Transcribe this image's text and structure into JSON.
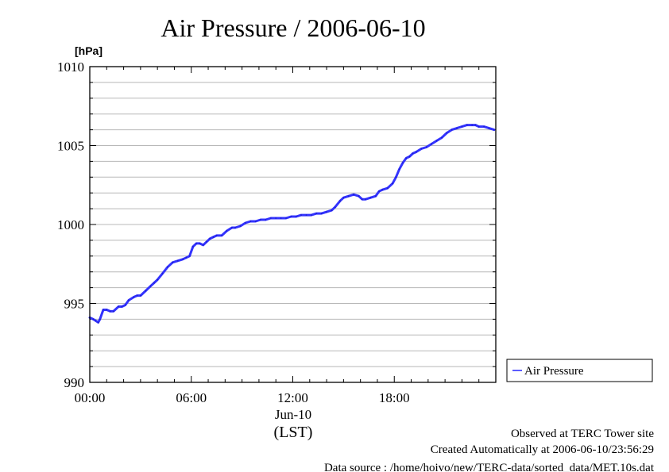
{
  "chart_data": {
    "type": "line",
    "title": "Air Pressure / 2006-06-10",
    "ylabel": "[hPa]",
    "xlabel": "(LST)",
    "date_label": "Jun-10",
    "ylim": [
      990,
      1010
    ],
    "yticks": [
      990,
      995,
      1000,
      1005,
      1010
    ],
    "xlim_hours": [
      0,
      24
    ],
    "xticks": [
      {
        "hour": 0,
        "label": "00:00"
      },
      {
        "hour": 6,
        "label": "06:00"
      },
      {
        "hour": 12,
        "label": "12:00"
      },
      {
        "hour": 18,
        "label": "18:00"
      }
    ],
    "grid": true,
    "legend_position": "right",
    "colors": {
      "series": "#3333ff"
    },
    "series": [
      {
        "name": "Air Pressure",
        "x": [
          0,
          0.2,
          0.35,
          0.5,
          0.6,
          0.8,
          1.0,
          1.2,
          1.4,
          1.7,
          1.9,
          2.1,
          2.3,
          2.6,
          2.8,
          3.0,
          3.3,
          3.6,
          3.8,
          4.0,
          4.3,
          4.6,
          4.9,
          5.2,
          5.5,
          5.7,
          5.9,
          6.1,
          6.3,
          6.5,
          6.7,
          6.9,
          7.1,
          7.3,
          7.5,
          7.8,
          8.1,
          8.4,
          8.6,
          8.9,
          9.2,
          9.5,
          9.8,
          10.1,
          10.4,
          10.7,
          11.0,
          11.3,
          11.6,
          11.9,
          12.2,
          12.5,
          12.8,
          13.1,
          13.4,
          13.7,
          14.0,
          14.3,
          14.5,
          14.8,
          15.0,
          15.3,
          15.6,
          15.9,
          16.1,
          16.3,
          16.6,
          16.9,
          17.1,
          17.3,
          17.6,
          17.9,
          18.1,
          18.3,
          18.5,
          18.7,
          18.9,
          19.1,
          19.3,
          19.6,
          19.9,
          20.2,
          20.5,
          20.8,
          21.1,
          21.4,
          21.7,
          22.0,
          22.3,
          22.6,
          22.8,
          23.0,
          23.3,
          23.6,
          23.9
        ],
        "values": [
          994.1,
          994.0,
          993.9,
          993.8,
          994.0,
          994.6,
          994.6,
          994.5,
          994.5,
          994.8,
          994.8,
          994.9,
          995.2,
          995.4,
          995.5,
          995.5,
          995.8,
          996.1,
          996.3,
          996.5,
          996.9,
          997.3,
          997.6,
          997.7,
          997.8,
          997.9,
          998.0,
          998.6,
          998.8,
          998.8,
          998.7,
          998.9,
          999.1,
          999.2,
          999.3,
          999.3,
          999.6,
          999.8,
          999.8,
          999.9,
          1000.1,
          1000.2,
          1000.2,
          1000.3,
          1000.3,
          1000.4,
          1000.4,
          1000.4,
          1000.4,
          1000.5,
          1000.5,
          1000.6,
          1000.6,
          1000.6,
          1000.7,
          1000.7,
          1000.8,
          1000.9,
          1001.1,
          1001.5,
          1001.7,
          1001.8,
          1001.9,
          1001.8,
          1001.6,
          1001.6,
          1001.7,
          1001.8,
          1002.1,
          1002.2,
          1002.3,
          1002.6,
          1003.0,
          1003.5,
          1003.9,
          1004.2,
          1004.3,
          1004.5,
          1004.6,
          1004.8,
          1004.9,
          1005.1,
          1005.3,
          1005.5,
          1005.8,
          1006.0,
          1006.1,
          1006.2,
          1006.3,
          1006.3,
          1006.3,
          1006.2,
          1006.2,
          1006.1,
          1006.0
        ]
      }
    ]
  },
  "footer": {
    "line1": "Observed at TERC Tower site",
    "line2": "Created Automatically at 2006-06-10/23:56:29",
    "line3": "Data source : /home/hoivo/new/TERC-data/sorted_data/MET.10s.dat"
  }
}
